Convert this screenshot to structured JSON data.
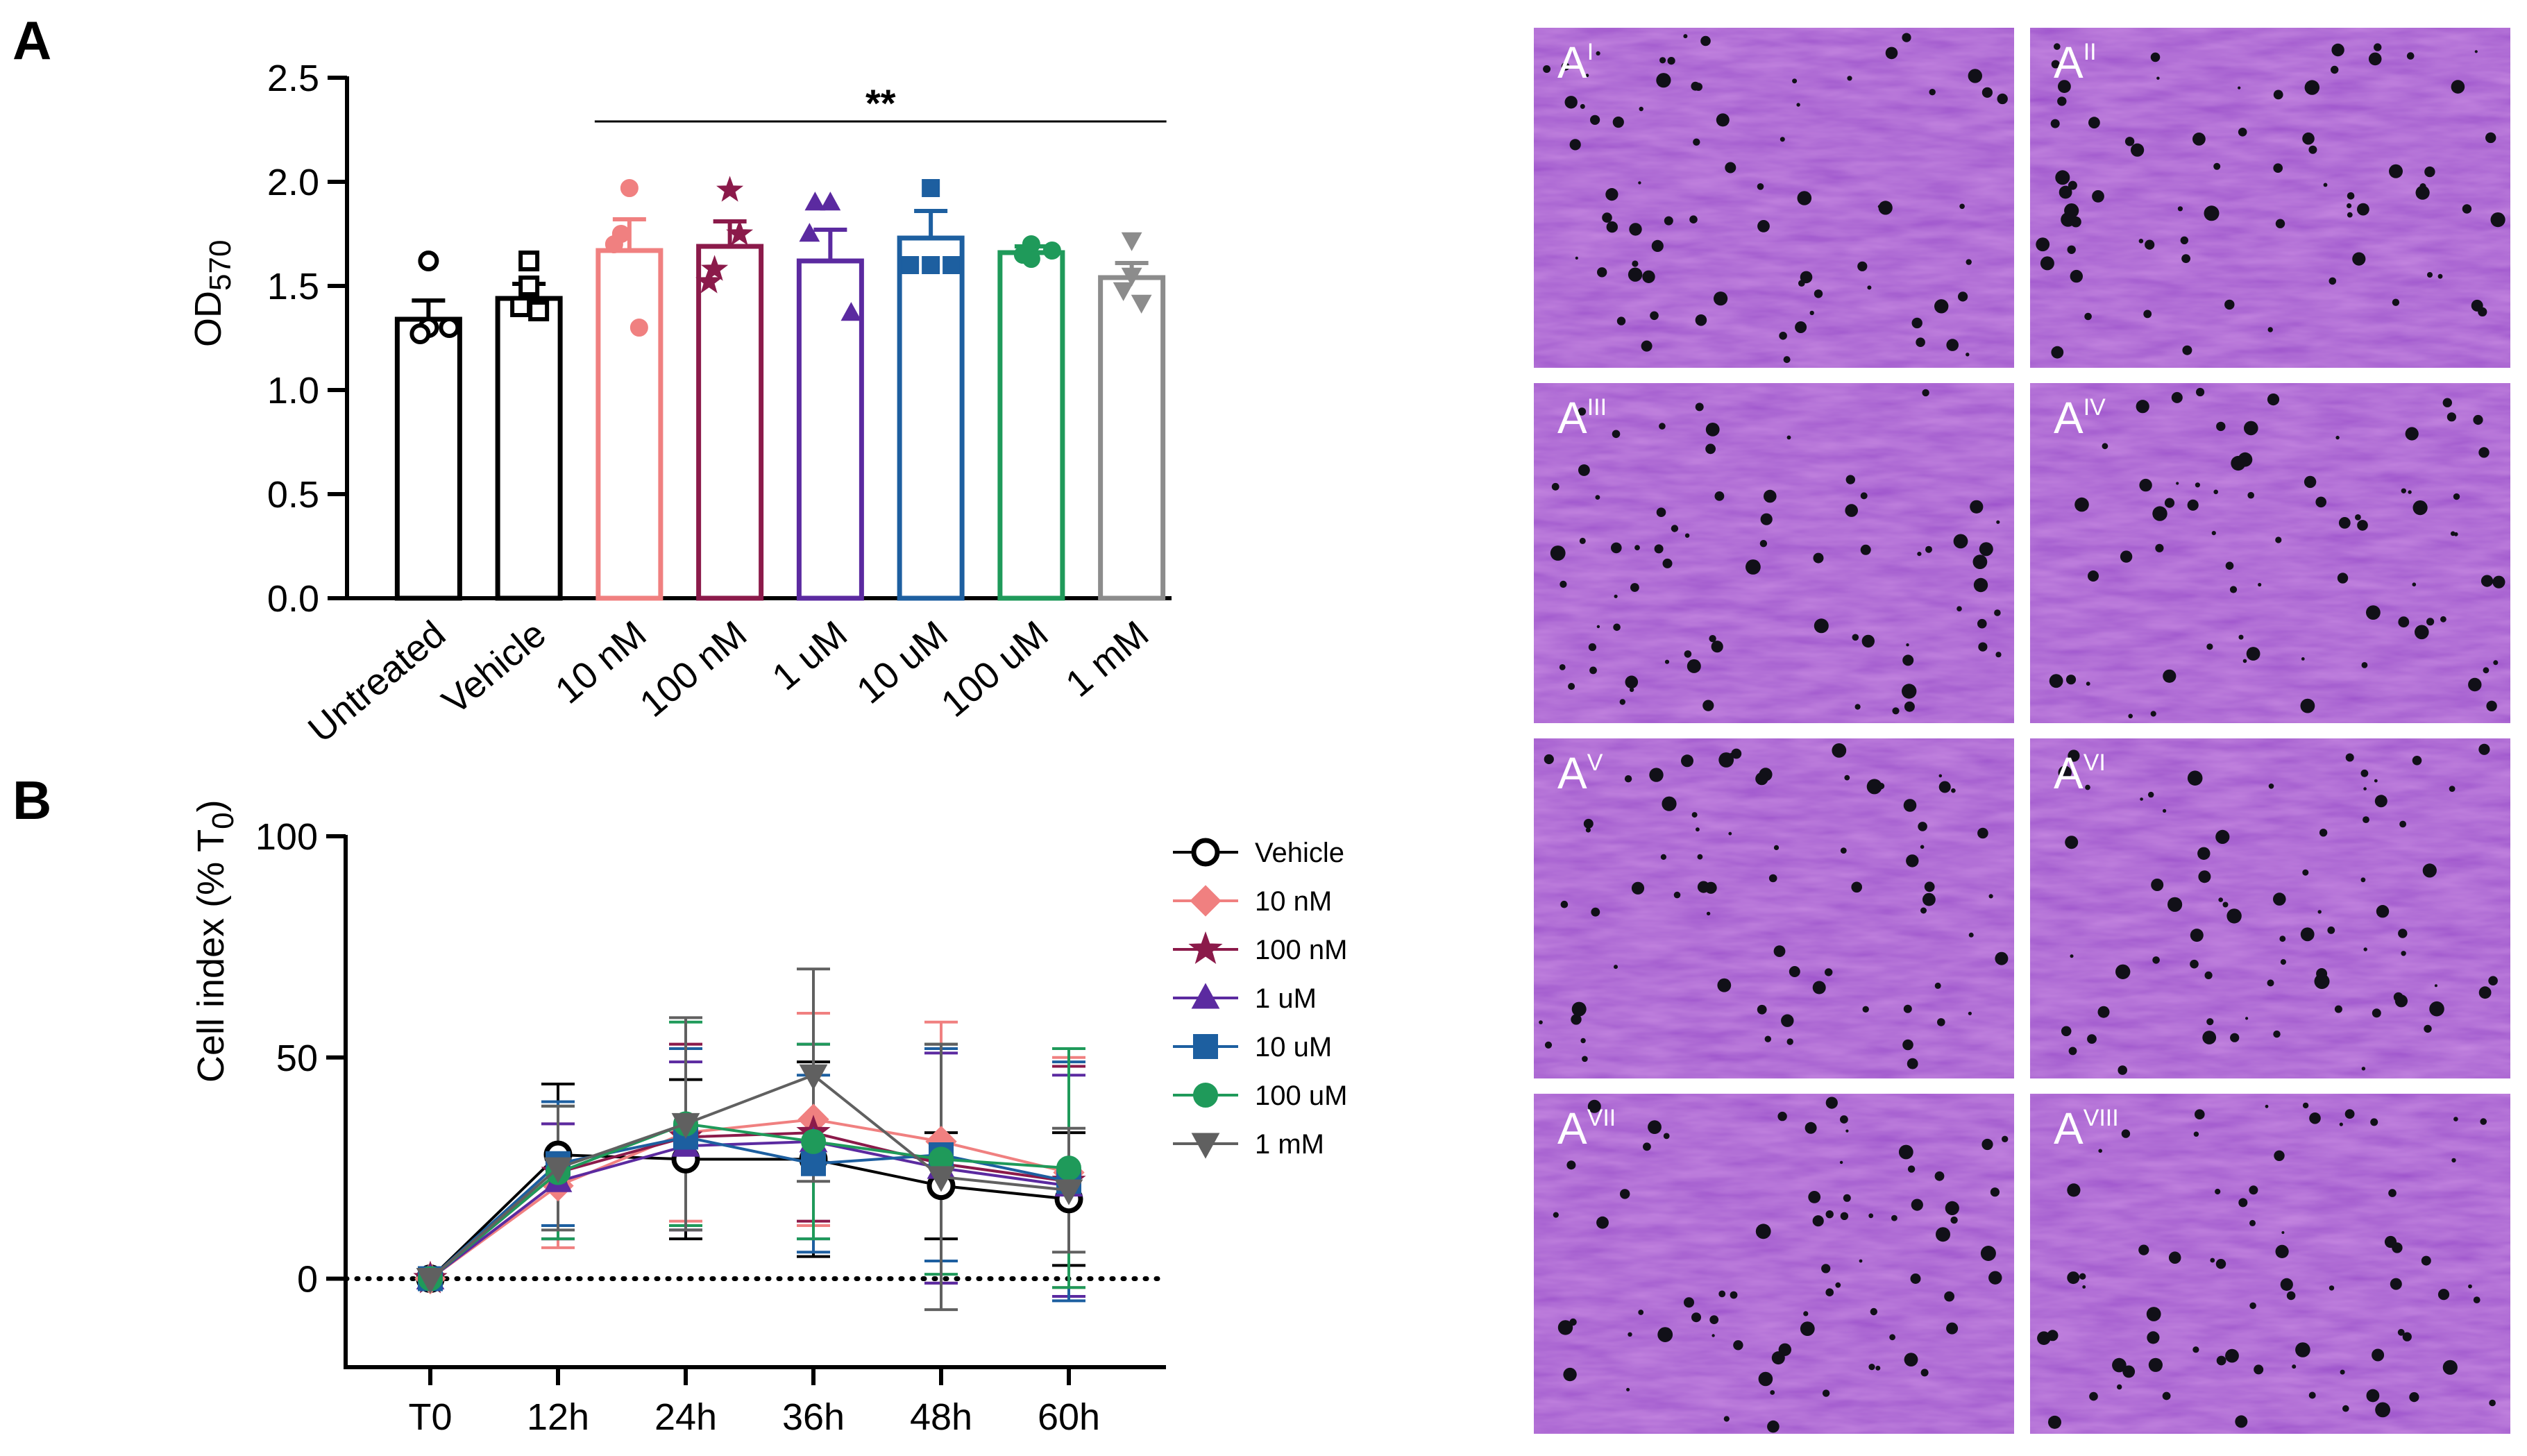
{
  "panel_labels": {
    "a": "A",
    "b": "B"
  },
  "micro_labels": [
    {
      "base": "A",
      "sup": "I"
    },
    {
      "base": "A",
      "sup": "II"
    },
    {
      "base": "A",
      "sup": "III"
    },
    {
      "base": "A",
      "sup": "IV"
    },
    {
      "base": "A",
      "sup": "V"
    },
    {
      "base": "A",
      "sup": "VI"
    },
    {
      "base": "A",
      "sup": "VII"
    },
    {
      "base": "A",
      "sup": "VIII"
    }
  ],
  "chart_data": [
    {
      "type": "bar",
      "panel": "A",
      "ylabel_main": "OD",
      "ylabel_sub": "570",
      "ylim": [
        0,
        2.5
      ],
      "yticks": [
        "0.0",
        "0.5",
        "1.0",
        "1.5",
        "2.0",
        "2.5"
      ],
      "significance": "**",
      "categories": [
        "Untreated",
        "Vehicle",
        "10 nM",
        "100 nM",
        "1 uM",
        "10 uM",
        "100 uM",
        "1 mM"
      ],
      "colors": [
        "#000000",
        "#000000",
        "#f08080",
        "#8b1a4a",
        "#5b2aa0",
        "#1d5fa0",
        "#1f9a5a",
        "#8c8c8c"
      ],
      "markers": [
        "circle",
        "square",
        "circle",
        "star",
        "triangle",
        "square",
        "circle",
        "triangle-down"
      ],
      "values": [
        1.34,
        1.44,
        1.67,
        1.69,
        1.62,
        1.73,
        1.66,
        1.54
      ],
      "sem": [
        0.09,
        0.07,
        0.15,
        0.12,
        0.15,
        0.13,
        0.03,
        0.07
      ],
      "points": [
        [
          1.62,
          1.3,
          1.3,
          1.27
        ],
        [
          1.62,
          1.5,
          1.4,
          1.38
        ],
        [
          1.97,
          1.75,
          1.3,
          1.7
        ],
        [
          1.96,
          1.75,
          1.58,
          1.52
        ],
        [
          1.9,
          1.9,
          1.75,
          1.37
        ],
        [
          1.97,
          1.6,
          1.6,
          1.6
        ],
        [
          1.7,
          1.67,
          1.63,
          1.65
        ],
        [
          1.72,
          1.55,
          1.48,
          1.42
        ]
      ]
    },
    {
      "type": "line",
      "panel": "B",
      "ylabel_main": "Cell index (% T",
      "ylabel_sub": "0",
      "ylabel_end": ")",
      "ylim": [
        -20,
        100
      ],
      "yticks": [
        "0",
        "50",
        "100"
      ],
      "x": [
        "T0",
        "12h",
        "24h",
        "36h",
        "48h",
        "60h"
      ],
      "series": [
        {
          "name": "Vehicle",
          "color": "#000000",
          "marker": "circle-open",
          "values": [
            0,
            28,
            27,
            27,
            21,
            18
          ],
          "err": [
            0,
            16,
            18,
            22,
            12,
            15
          ]
        },
        {
          "name": "10 nM",
          "color": "#f08080",
          "marker": "diamond",
          "values": [
            0,
            21,
            33,
            36,
            31,
            24
          ],
          "err": [
            0,
            14,
            20,
            24,
            27,
            26
          ]
        },
        {
          "name": "100 nM",
          "color": "#8b1a4a",
          "marker": "star",
          "values": [
            0,
            24,
            32,
            33,
            26,
            22
          ],
          "err": [
            0,
            15,
            21,
            20,
            27,
            26
          ]
        },
        {
          "name": "1 uM",
          "color": "#5b2aa0",
          "marker": "triangle",
          "values": [
            0,
            22,
            30,
            31,
            25,
            21
          ],
          "err": [
            0,
            13,
            19,
            22,
            26,
            25
          ]
        },
        {
          "name": "10 uM",
          "color": "#1d5fa0",
          "marker": "square",
          "values": [
            0,
            26,
            32,
            26,
            28,
            22
          ],
          "err": [
            0,
            14,
            20,
            20,
            24,
            27
          ]
        },
        {
          "name": "100 uM",
          "color": "#1f9a5a",
          "marker": "circle",
          "values": [
            0,
            24,
            35,
            31,
            27,
            25
          ],
          "err": [
            0,
            15,
            23,
            22,
            26,
            27
          ]
        },
        {
          "name": "1 mM",
          "color": "#606060",
          "marker": "triangle-down",
          "values": [
            0,
            25,
            35,
            46,
            23,
            20
          ],
          "err": [
            0,
            14,
            24,
            24,
            30,
            14
          ]
        }
      ]
    }
  ]
}
